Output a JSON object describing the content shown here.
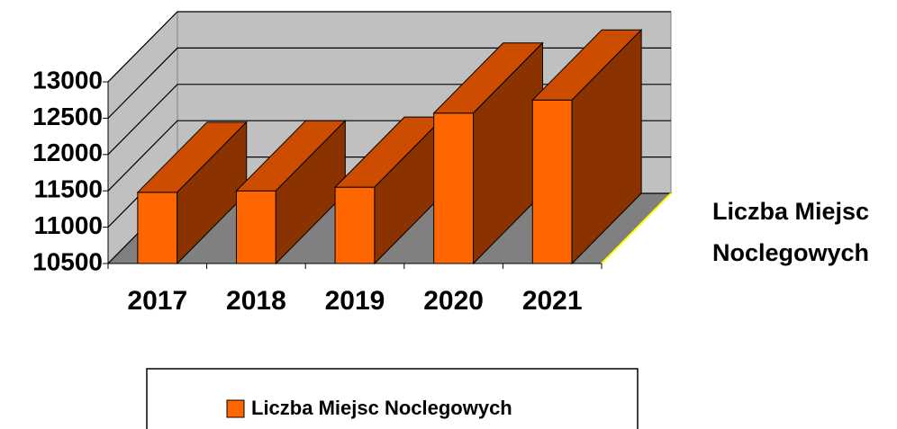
{
  "chart_data": {
    "type": "bar3d",
    "categories": [
      "2017",
      "2018",
      "2019",
      "2020",
      "2021"
    ],
    "series": [
      {
        "name": "Liczba Miejsc Noclegowych",
        "color": "#ff6600",
        "values": [
          11480,
          11500,
          11550,
          12570,
          12750
        ]
      }
    ],
    "ylim": [
      10500,
      13000
    ],
    "yticks": [
      10500,
      11000,
      11500,
      12000,
      12500,
      13000
    ],
    "grid": true,
    "legend": "bottom"
  }
}
